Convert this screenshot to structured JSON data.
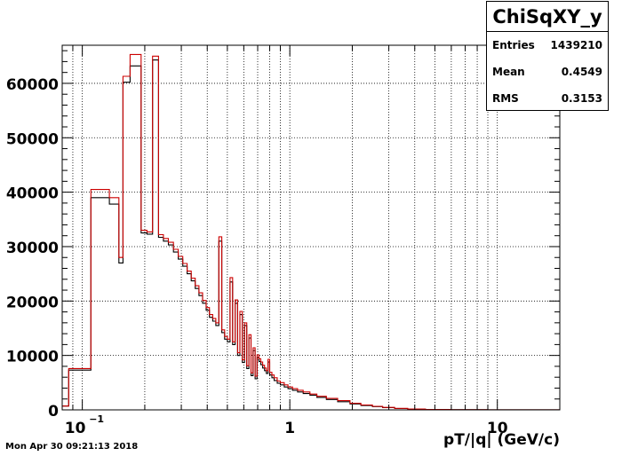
{
  "window": {
    "timestamp": "Mon Apr 30 09:21:13 2018"
  },
  "stats": {
    "title": "ChiSqXY_y",
    "rows": [
      {
        "label": "Entries",
        "value": "1439210"
      },
      {
        "label": "Mean",
        "value": "0.4549"
      },
      {
        "label": "RMS",
        "value": "0.3153"
      }
    ]
  },
  "chart_data": {
    "type": "line",
    "title": "",
    "xlabel": "pT/|q| (GeV/c)",
    "ylabel": "",
    "xscale": "log",
    "xlim": [
      0.08,
      20
    ],
    "ylim": [
      0,
      67000
    ],
    "grid": true,
    "legend": "none",
    "y_ticks": [
      0,
      10000,
      20000,
      30000,
      40000,
      50000,
      60000
    ],
    "y_tick_labels": [
      "0",
      "10000",
      "20000",
      "30000",
      "40000",
      "50000",
      "60000"
    ],
    "x_tick_labels": [
      {
        "x": 0.1,
        "base": "10",
        "exp": "−1"
      },
      {
        "x": 1,
        "base": "1",
        "exp": ""
      },
      {
        "x": 10,
        "base": "10",
        "exp": ""
      }
    ],
    "colors": {
      "series_black": "#000000",
      "series_red": "#cc0000",
      "grid": "#000000"
    },
    "series": [
      {
        "color": "#000000",
        "bins": [
          [
            0.08,
            0.086,
            700
          ],
          [
            0.086,
            0.11,
            7300
          ],
          [
            0.11,
            0.135,
            39000
          ],
          [
            0.135,
            0.15,
            37800
          ],
          [
            0.15,
            0.157,
            27000
          ],
          [
            0.157,
            0.17,
            60200
          ],
          [
            0.17,
            0.192,
            63200
          ],
          [
            0.192,
            0.205,
            32500
          ],
          [
            0.205,
            0.218,
            32300
          ],
          [
            0.218,
            0.233,
            64300
          ],
          [
            0.233,
            0.246,
            31700
          ],
          [
            0.246,
            0.26,
            31000
          ],
          [
            0.26,
            0.275,
            30300
          ],
          [
            0.275,
            0.29,
            29000
          ],
          [
            0.29,
            0.305,
            27700
          ],
          [
            0.305,
            0.32,
            26400
          ],
          [
            0.32,
            0.335,
            25000
          ],
          [
            0.335,
            0.35,
            23700
          ],
          [
            0.35,
            0.365,
            22300
          ],
          [
            0.365,
            0.38,
            21000
          ],
          [
            0.38,
            0.395,
            19600
          ],
          [
            0.395,
            0.41,
            18300
          ],
          [
            0.41,
            0.425,
            17000
          ],
          [
            0.425,
            0.44,
            16300
          ],
          [
            0.44,
            0.455,
            15500
          ],
          [
            0.455,
            0.47,
            31000
          ],
          [
            0.47,
            0.485,
            14200
          ],
          [
            0.485,
            0.5,
            13000
          ],
          [
            0.5,
            0.515,
            12500
          ],
          [
            0.515,
            0.53,
            23500
          ],
          [
            0.53,
            0.545,
            12000
          ],
          [
            0.545,
            0.56,
            19600
          ],
          [
            0.56,
            0.575,
            10000
          ],
          [
            0.575,
            0.59,
            17500
          ],
          [
            0.59,
            0.605,
            8700
          ],
          [
            0.605,
            0.62,
            15500
          ],
          [
            0.62,
            0.635,
            7600
          ],
          [
            0.635,
            0.65,
            13200
          ],
          [
            0.65,
            0.665,
            6300
          ],
          [
            0.665,
            0.68,
            10900
          ],
          [
            0.68,
            0.695,
            5700
          ],
          [
            0.695,
            0.71,
            9600
          ],
          [
            0.71,
            0.725,
            8900
          ],
          [
            0.725,
            0.74,
            8300
          ],
          [
            0.74,
            0.755,
            7700
          ],
          [
            0.755,
            0.77,
            7200
          ],
          [
            0.77,
            0.785,
            6700
          ],
          [
            0.785,
            0.8,
            8800
          ],
          [
            0.8,
            0.82,
            6400
          ],
          [
            0.82,
            0.84,
            5900
          ],
          [
            0.84,
            0.87,
            5400
          ],
          [
            0.87,
            0.9,
            4900
          ],
          [
            0.9,
            0.94,
            4600
          ],
          [
            0.94,
            0.98,
            4200
          ],
          [
            0.98,
            1.03,
            3900
          ],
          [
            1.03,
            1.09,
            3600
          ],
          [
            1.09,
            1.16,
            3300
          ],
          [
            1.16,
            1.25,
            3000
          ],
          [
            1.25,
            1.35,
            2700
          ],
          [
            1.35,
            1.5,
            2300
          ],
          [
            1.5,
            1.7,
            1900
          ],
          [
            1.7,
            1.95,
            1500
          ],
          [
            1.95,
            2.2,
            1100
          ],
          [
            2.2,
            2.5,
            800
          ],
          [
            2.5,
            2.8,
            600
          ],
          [
            2.8,
            3.2,
            400
          ],
          [
            3.2,
            3.7,
            250
          ],
          [
            3.7,
            4.5,
            150
          ],
          [
            4.5,
            6,
            70
          ],
          [
            6,
            9,
            30
          ],
          [
            9,
            20,
            10
          ]
        ]
      },
      {
        "color": "#cc0000",
        "bins": [
          [
            0.08,
            0.086,
            700
          ],
          [
            0.086,
            0.11,
            7600
          ],
          [
            0.11,
            0.135,
            40500
          ],
          [
            0.135,
            0.15,
            39000
          ],
          [
            0.15,
            0.157,
            28000
          ],
          [
            0.157,
            0.17,
            61300
          ],
          [
            0.17,
            0.192,
            65300
          ],
          [
            0.192,
            0.205,
            33000
          ],
          [
            0.205,
            0.218,
            32700
          ],
          [
            0.218,
            0.233,
            65000
          ],
          [
            0.233,
            0.246,
            32200
          ],
          [
            0.246,
            0.26,
            31500
          ],
          [
            0.26,
            0.275,
            30800
          ],
          [
            0.275,
            0.29,
            29500
          ],
          [
            0.29,
            0.305,
            28200
          ],
          [
            0.305,
            0.32,
            26900
          ],
          [
            0.32,
            0.335,
            25500
          ],
          [
            0.335,
            0.35,
            24200
          ],
          [
            0.35,
            0.365,
            22800
          ],
          [
            0.365,
            0.38,
            21500
          ],
          [
            0.38,
            0.395,
            20100
          ],
          [
            0.395,
            0.41,
            18800
          ],
          [
            0.41,
            0.425,
            17500
          ],
          [
            0.425,
            0.44,
            16800
          ],
          [
            0.44,
            0.455,
            16000
          ],
          [
            0.455,
            0.47,
            31800
          ],
          [
            0.47,
            0.485,
            14700
          ],
          [
            0.485,
            0.5,
            13500
          ],
          [
            0.5,
            0.515,
            13000
          ],
          [
            0.515,
            0.53,
            24300
          ],
          [
            0.53,
            0.545,
            12500
          ],
          [
            0.545,
            0.56,
            20200
          ],
          [
            0.56,
            0.575,
            10500
          ],
          [
            0.575,
            0.59,
            18100
          ],
          [
            0.59,
            0.605,
            9200
          ],
          [
            0.605,
            0.62,
            16000
          ],
          [
            0.62,
            0.635,
            8100
          ],
          [
            0.635,
            0.65,
            13800
          ],
          [
            0.65,
            0.665,
            6800
          ],
          [
            0.665,
            0.68,
            11400
          ],
          [
            0.68,
            0.695,
            6200
          ],
          [
            0.695,
            0.71,
            10100
          ],
          [
            0.71,
            0.725,
            9400
          ],
          [
            0.725,
            0.74,
            8800
          ],
          [
            0.74,
            0.755,
            8200
          ],
          [
            0.755,
            0.77,
            7700
          ],
          [
            0.77,
            0.785,
            7200
          ],
          [
            0.785,
            0.8,
            9300
          ],
          [
            0.8,
            0.82,
            6900
          ],
          [
            0.82,
            0.84,
            6400
          ],
          [
            0.84,
            0.87,
            5900
          ],
          [
            0.87,
            0.9,
            5300
          ],
          [
            0.9,
            0.94,
            5000
          ],
          [
            0.94,
            0.98,
            4600
          ],
          [
            0.98,
            1.03,
            4200
          ],
          [
            1.03,
            1.09,
            3900
          ],
          [
            1.09,
            1.16,
            3600
          ],
          [
            1.16,
            1.25,
            3300
          ],
          [
            1.25,
            1.35,
            2900
          ],
          [
            1.35,
            1.5,
            2500
          ],
          [
            1.5,
            1.7,
            2100
          ],
          [
            1.7,
            1.95,
            1700
          ],
          [
            1.95,
            2.2,
            1200
          ],
          [
            2.2,
            2.5,
            900
          ],
          [
            2.5,
            2.8,
            650
          ],
          [
            2.8,
            3.2,
            450
          ],
          [
            3.2,
            3.7,
            280
          ],
          [
            3.7,
            4.5,
            170
          ],
          [
            4.5,
            6,
            80
          ],
          [
            6,
            9,
            35
          ],
          [
            9,
            20,
            12
          ]
        ]
      }
    ]
  }
}
